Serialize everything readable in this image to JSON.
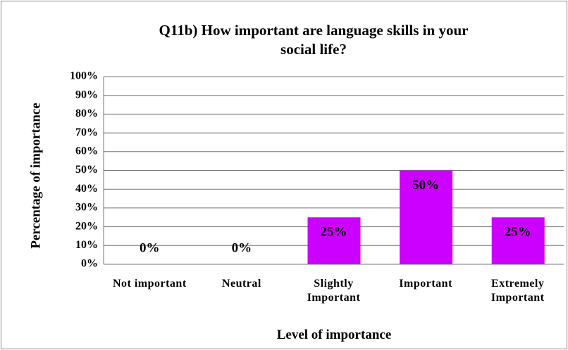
{
  "chart_data": {
    "type": "bar",
    "title": "Q11b) How important  are language skills in your social life?",
    "x_label": "Level of importance",
    "y_label": "Percentage of importance",
    "categories": [
      "Not important",
      "Neutral",
      "Slightly Important",
      "Important",
      "Extremely Important"
    ],
    "values": [
      0,
      0,
      25,
      50,
      25
    ],
    "value_labels": [
      "0%",
      "0%",
      "25%",
      "50%",
      "25%"
    ],
    "color": "#cc00ff",
    "ylim": [
      0,
      100
    ],
    "yticks": [
      {
        "value": 0,
        "label": "0%"
      },
      {
        "value": 10,
        "label": "10%"
      },
      {
        "value": 20,
        "label": "20%"
      },
      {
        "value": 30,
        "label": "30%"
      },
      {
        "value": 40,
        "label": "40%"
      },
      {
        "value": 50,
        "label": "50%"
      },
      {
        "value": 60,
        "label": "60%"
      },
      {
        "value": 70,
        "label": "70%"
      },
      {
        "value": 80,
        "label": "80%"
      },
      {
        "value": 90,
        "label": "90%"
      },
      {
        "value": 100,
        "label": "100%"
      }
    ],
    "grid": true
  }
}
